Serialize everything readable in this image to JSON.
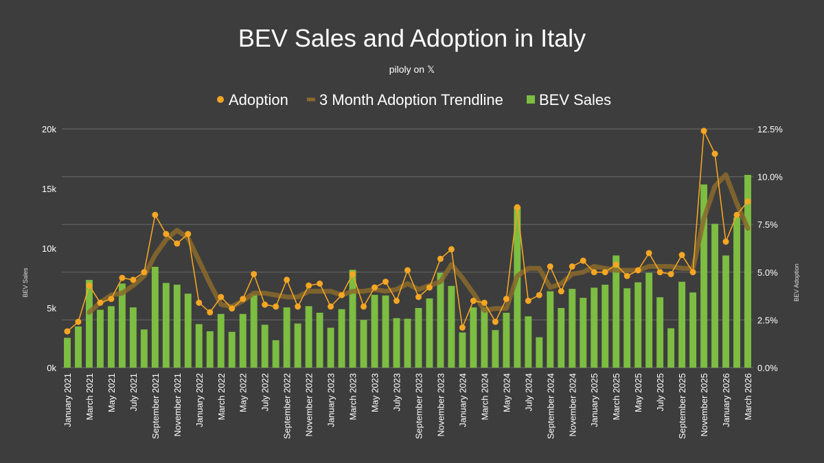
{
  "colors": {
    "background": "#3d3d3d",
    "bars": "#7cbd42",
    "adoption": "#f5a623",
    "trend": "#8a6a2c",
    "grid": "#6a6a6a"
  },
  "subtitle_prefix": "piloly on",
  "subtitle_brand": "𝕏",
  "chart_data": {
    "type": "bar+line",
    "title": "BEV Sales and Adoption in Italy",
    "ylabel_left": "BEV Sales",
    "ylabel_right": "BEV Adoption",
    "ylim_left": [
      0,
      20000
    ],
    "ylim_right": [
      0,
      12.5
    ],
    "left_ticks": [
      "0k",
      "5k",
      "10k",
      "15k",
      "20k"
    ],
    "right_ticks": [
      "0.0%",
      "2.5%",
      "5.0%",
      "7.5%",
      "10.0%",
      "12.5%"
    ],
    "legend": [
      "Adoption",
      "3 Month Adoption Trendline",
      "BEV Sales"
    ],
    "categories": [
      "January 2021",
      "February 2021",
      "March 2021",
      "April 2021",
      "May 2021",
      "June 2021",
      "July 2021",
      "August 2021",
      "September 2021",
      "October 2021",
      "November 2021",
      "December 2021",
      "January 2022",
      "February 2022",
      "March 2022",
      "April 2022",
      "May 2022",
      "June 2022",
      "July 2022",
      "August 2022",
      "September 2022",
      "October 2022",
      "November 2022",
      "December 2022",
      "January 2023",
      "February 2023",
      "March 2023",
      "April 2023",
      "May 2023",
      "June 2023",
      "July 2023",
      "August 2023",
      "September 2023",
      "October 2023",
      "November 2023",
      "December 2023",
      "January 2024",
      "February 2024",
      "March 2024",
      "April 2024",
      "May 2024",
      "June 2024",
      "July 2024",
      "August 2024",
      "September 2024",
      "October 2024",
      "November 2024",
      "December 2024",
      "January 2025",
      "February 2025",
      "March 2025",
      "April 2025",
      "May 2025",
      "June 2025",
      "July 2025",
      "August 2025",
      "September 2025",
      "October 2025",
      "November 2025",
      "December 2025",
      "January 2026",
      "February 2026",
      "March 2026"
    ],
    "tick_labels": [
      "January 2021",
      "March 2021",
      "May 2021",
      "July 2021",
      "September 2021",
      "November 2021",
      "January 2022",
      "March 2022",
      "May 2022",
      "July 2022",
      "September 2022",
      "November 2022",
      "January 2023",
      "March 2023",
      "May 2023",
      "July 2023",
      "September 2023",
      "November 2023",
      "January 2024",
      "March 2024",
      "May 2024",
      "July 2024",
      "September 2024",
      "November 2024",
      "January 2025",
      "March 2025",
      "May 2025",
      "July 2025",
      "September 2025",
      "November 2025",
      "January 2026",
      "March 2026"
    ],
    "series": [
      {
        "name": "BEV Sales",
        "type": "bar",
        "axis": "left",
        "values": [
          2500,
          3450,
          7350,
          4850,
          5150,
          7050,
          5050,
          3200,
          8450,
          7100,
          6950,
          6200,
          3650,
          3050,
          4500,
          3000,
          4500,
          6150,
          3600,
          2300,
          5050,
          3700,
          5150,
          4600,
          3350,
          4900,
          8200,
          4000,
          6100,
          6050,
          4150,
          4100,
          5000,
          5800,
          7950,
          6850,
          2950,
          5050,
          5050,
          3150,
          4600,
          13500,
          4300,
          2550,
          6400,
          5000,
          6600,
          5850,
          6700,
          6950,
          9400,
          6650,
          7150,
          7950,
          5900,
          3300,
          7200,
          6300,
          15350,
          12050,
          9400,
          12600,
          16150
        ]
      },
      {
        "name": "Adoption",
        "type": "line",
        "axis": "right",
        "values": [
          1.9,
          2.4,
          4.3,
          3.4,
          3.6,
          4.7,
          4.6,
          5.0,
          8.0,
          7.0,
          6.5,
          7.0,
          3.4,
          2.9,
          3.7,
          3.1,
          3.6,
          4.9,
          3.3,
          3.2,
          4.6,
          3.2,
          4.3,
          4.4,
          3.2,
          3.8,
          4.9,
          3.2,
          4.2,
          4.5,
          3.5,
          5.1,
          3.7,
          4.2,
          5.7,
          6.2,
          2.1,
          3.5,
          3.4,
          2.4,
          3.6,
          8.4,
          3.5,
          3.8,
          5.3,
          4.0,
          5.3,
          5.6,
          5.0,
          5.0,
          5.4,
          4.8,
          5.1,
          6.0,
          5.0,
          4.9,
          5.9,
          5.0,
          12.4,
          11.2,
          6.6,
          8.0,
          8.7
        ]
      },
      {
        "name": "3 Month Adoption Trendline",
        "type": "line",
        "axis": "right",
        "values": [
          null,
          null,
          2.9,
          3.4,
          3.8,
          3.9,
          4.3,
          4.8,
          5.9,
          6.7,
          7.2,
          6.8,
          5.6,
          4.4,
          3.3,
          3.2,
          3.5,
          3.9,
          3.9,
          3.8,
          3.7,
          3.7,
          4.0,
          4.0,
          4.0,
          3.8,
          4.0,
          4.0,
          4.1,
          4.0,
          4.1,
          4.4,
          4.1,
          4.3,
          4.5,
          5.4,
          4.7,
          3.9,
          3.0,
          3.1,
          3.1,
          4.8,
          5.2,
          5.2,
          4.2,
          4.4,
          4.9,
          5.0,
          5.3,
          5.2,
          5.1,
          5.1,
          5.1,
          5.3,
          5.3,
          5.3,
          5.2,
          5.2,
          7.8,
          9.5,
          10.1,
          8.6,
          7.3
        ]
      }
    ]
  }
}
